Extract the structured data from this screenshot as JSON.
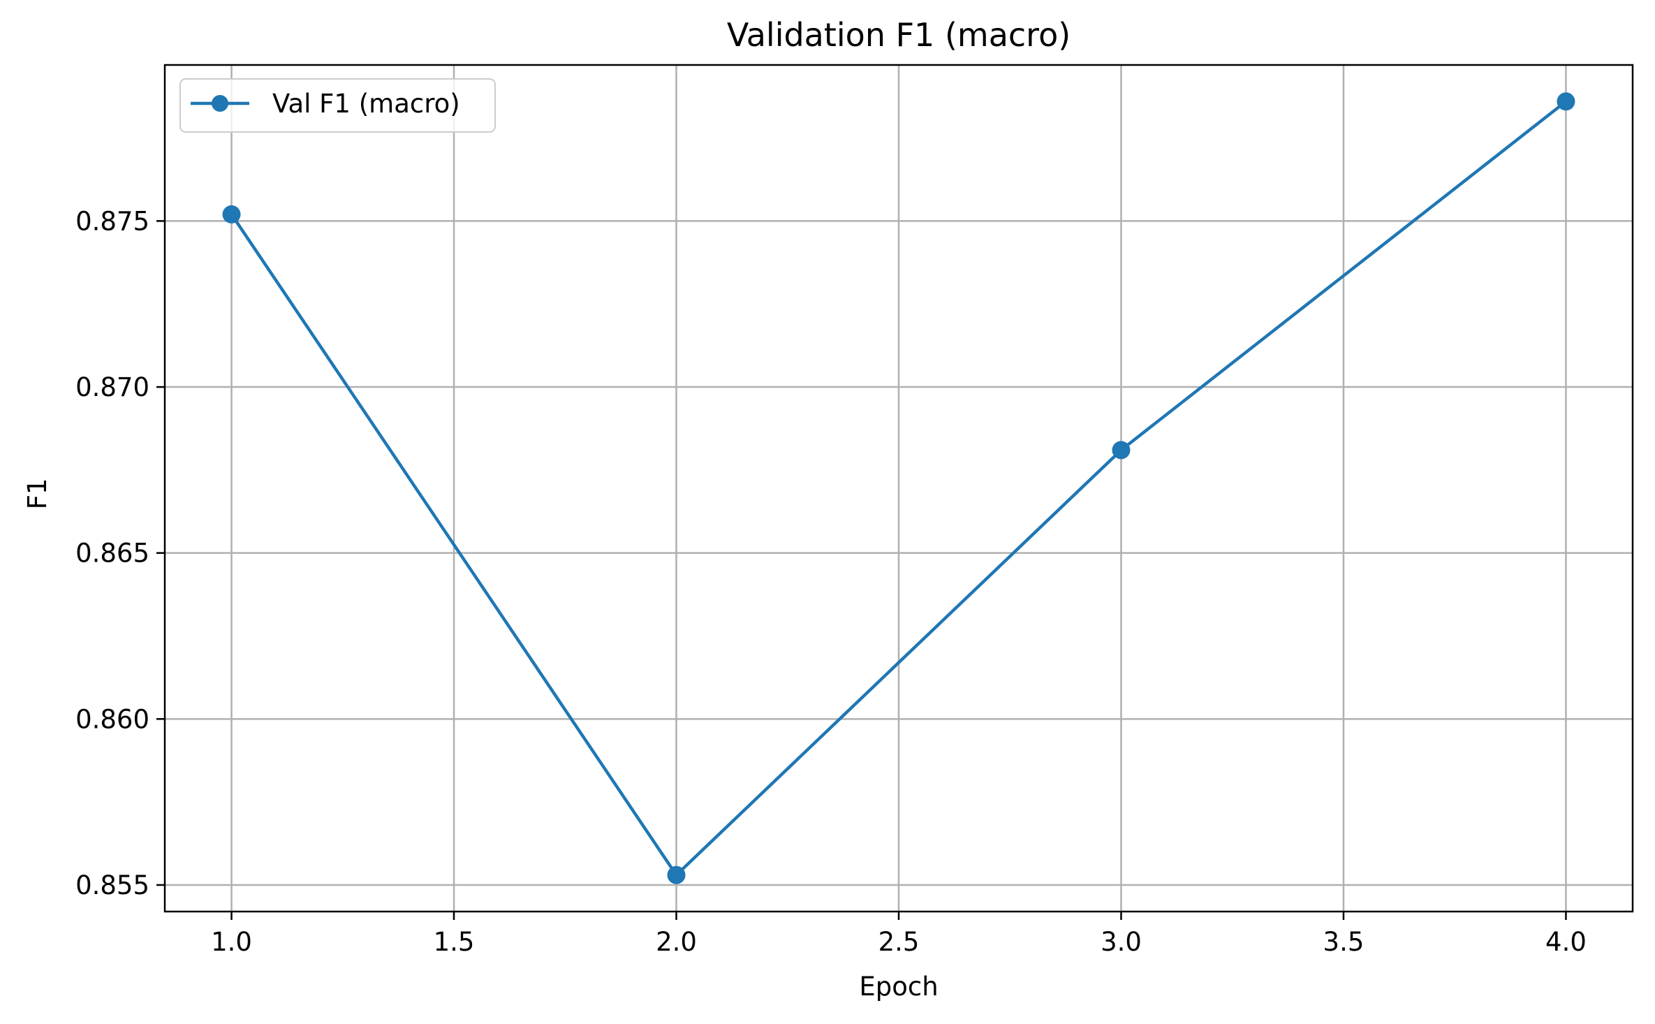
{
  "chart_data": {
    "type": "line",
    "title": "Validation F1 (macro)",
    "xlabel": "Epoch",
    "ylabel": "F1",
    "xlim": [
      0.85,
      4.15
    ],
    "ylim": [
      0.8542,
      0.8797
    ],
    "grid": true,
    "legend_position": "top-left",
    "x_ticks": [
      1.0,
      1.5,
      2.0,
      2.5,
      3.0,
      3.5,
      4.0
    ],
    "x_tick_labels": [
      "1.0",
      "1.5",
      "2.0",
      "2.5",
      "3.0",
      "3.5",
      "4.0"
    ],
    "y_ticks": [
      0.855,
      0.86,
      0.865,
      0.87,
      0.875
    ],
    "y_tick_labels": [
      "0.855",
      "0.860",
      "0.865",
      "0.870",
      "0.875"
    ],
    "series": [
      {
        "name": "Val F1 (macro)",
        "color": "#1f77b4",
        "marker": "circle",
        "x": [
          1,
          2,
          3,
          4
        ],
        "y": [
          0.8752,
          0.8553,
          0.8681,
          0.8786
        ]
      }
    ]
  }
}
